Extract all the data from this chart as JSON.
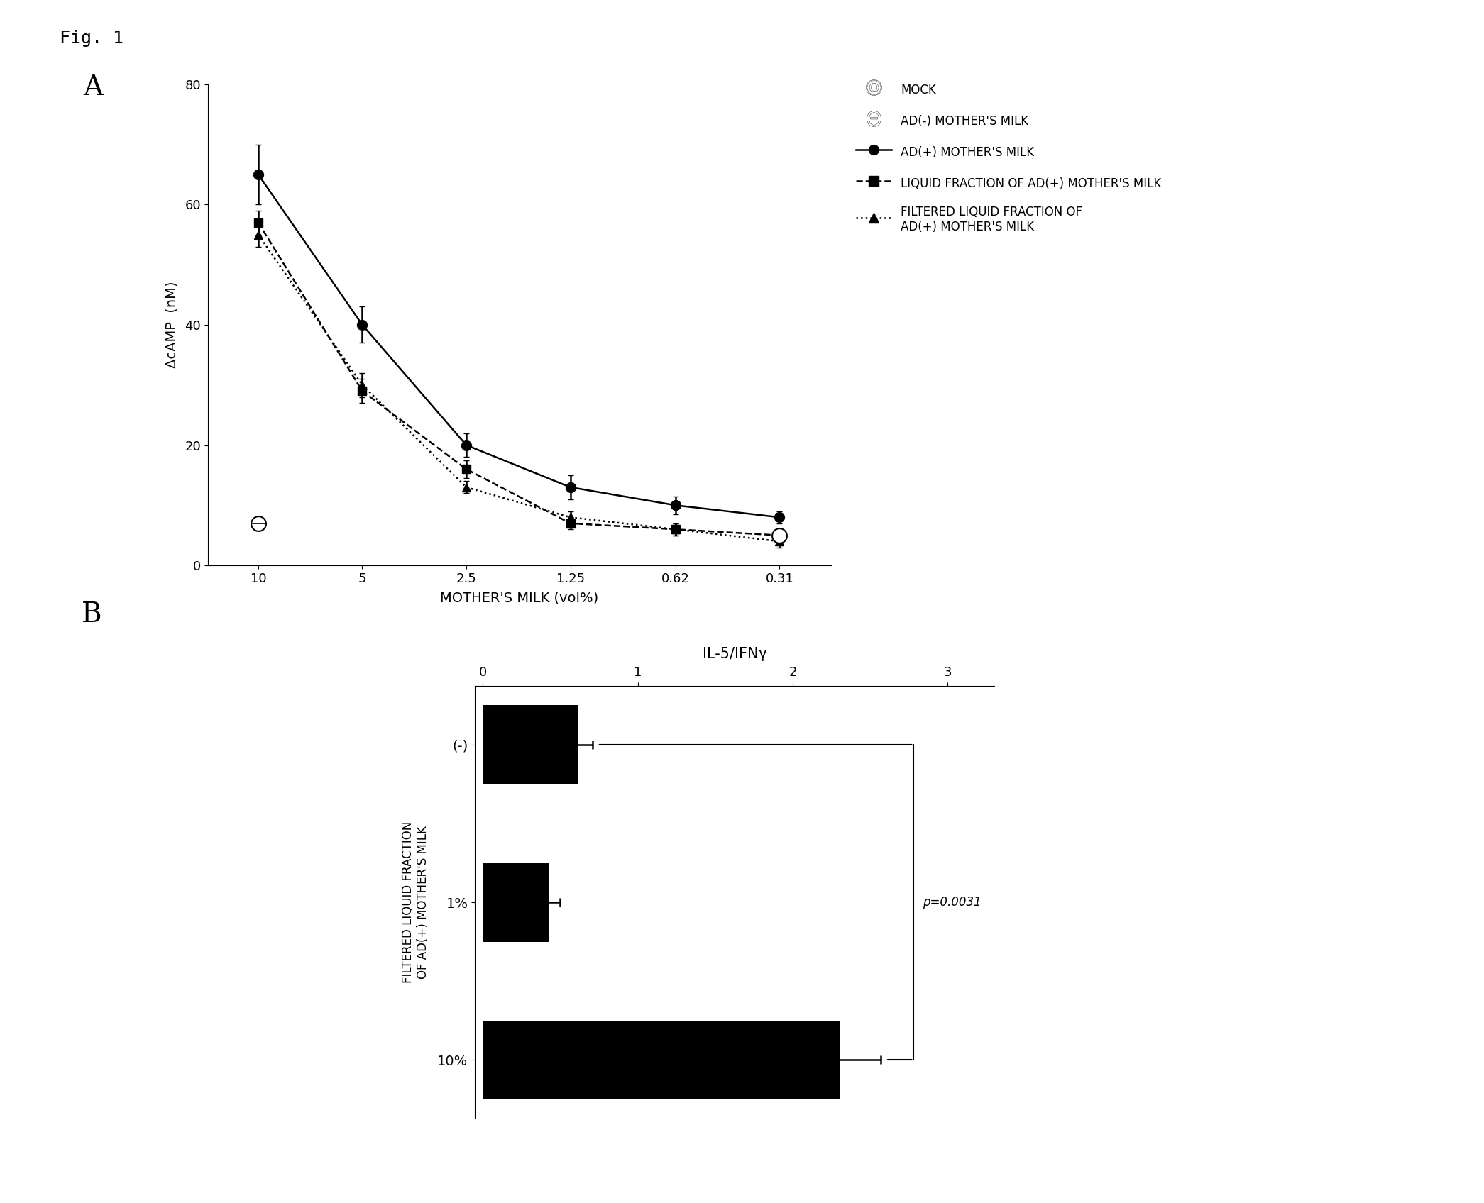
{
  "fig_label": "Fig. 1",
  "panel_A": {
    "label": "A",
    "xlabel": "MOTHER'S MILK (vol%)",
    "ylabel": "ΔcAMP  (nM)",
    "ylim": [
      0,
      80
    ],
    "yticks": [
      0,
      20,
      40,
      60,
      80
    ],
    "xtick_labels": [
      "10",
      "5",
      "2.5",
      "1.25",
      "0.62",
      "0.31"
    ],
    "xtick_positions": [
      10,
      5,
      2.5,
      1.25,
      0.62,
      0.31
    ],
    "series": [
      {
        "name": "AD(+) MOTHER'S MILK",
        "x": [
          10,
          5,
          2.5,
          1.25,
          0.62,
          0.31
        ],
        "y": [
          65,
          40,
          20,
          13,
          10,
          8
        ],
        "yerr": [
          5,
          3,
          2,
          2,
          1.5,
          1
        ],
        "linestyle": "-",
        "marker": "o",
        "markersize": 10,
        "linewidth": 1.8
      },
      {
        "name": "LIQUID FRACTION OF AD(+) MOTHER'S MILK",
        "x": [
          10,
          5,
          2.5,
          1.25,
          0.62,
          0.31
        ],
        "y": [
          57,
          29,
          16,
          7,
          6,
          5
        ],
        "yerr": [
          2,
          2,
          1.5,
          1,
          1,
          1
        ],
        "linestyle": "--",
        "marker": "s",
        "markersize": 9,
        "linewidth": 1.8
      },
      {
        "name": "FILTERED LIQUID FRACTION OF\nAD(+) MOTHER'S MILK",
        "x": [
          10,
          5,
          2.5,
          1.25,
          0.62,
          0.31
        ],
        "y": [
          55,
          30,
          13,
          8,
          6,
          4
        ],
        "yerr": [
          2,
          2,
          1,
          1,
          1,
          1
        ],
        "linestyle": ":",
        "marker": "^",
        "markersize": 9,
        "linewidth": 1.8
      }
    ],
    "mock_y": 5.0,
    "mock_x_right": 0.31,
    "ad_minus_y": 7.0,
    "ad_minus_x": 10,
    "legend_labels": [
      "MOCK",
      "AD(-) MOTHER'S MILK",
      "AD(+) MOTHER'S MILK",
      "LIQUID FRACTION OF AD(+) MOTHER'S MILK",
      "FILTERED LIQUID FRACTION OF\nAD(+) MOTHER'S MILK"
    ]
  },
  "panel_B": {
    "label": "B",
    "top_xlabel": "IL-5/IFNγ",
    "ylabel_line1": "FILTERED LIQUID FRACTION",
    "ylabel_line2": "OF AD(+) MOTHER'S MILK",
    "categories": [
      "(-)",
      "1%",
      "10%"
    ],
    "values": [
      0.62,
      0.43,
      2.3
    ],
    "errors": [
      0.09,
      0.07,
      0.27
    ],
    "bar_color": "#000000",
    "xlim": [
      -0.05,
      3.3
    ],
    "xticks": [
      0,
      1,
      2,
      3
    ],
    "significance": "p=0.0031"
  }
}
